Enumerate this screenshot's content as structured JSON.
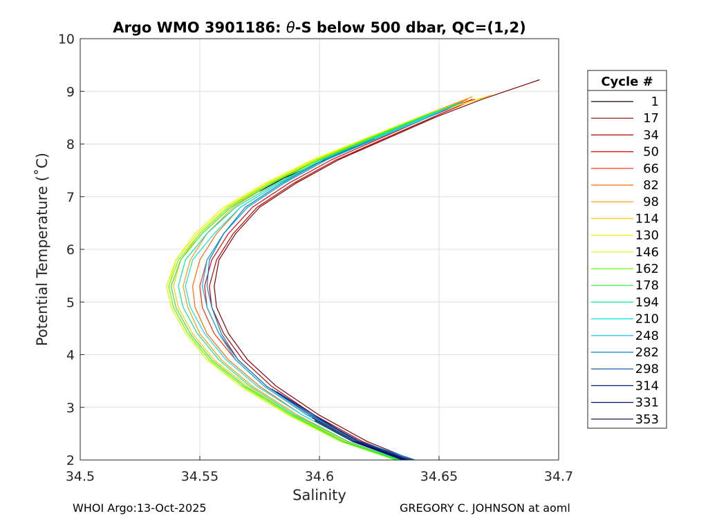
{
  "chart_data": {
    "type": "line",
    "title_prefix": "Argo WMO 3901186: ",
    "title_theta": "θ",
    "title_suffix": "-S below 500 dbar,  QC=(1,2)",
    "xlabel": "Salinity",
    "ylabel": "Potential Temperature (˚C)",
    "xlim": [
      34.5,
      34.7
    ],
    "ylim": [
      2,
      10
    ],
    "xticks": [
      "34.5",
      "34.55",
      "34.6",
      "34.65",
      "34.7"
    ],
    "yticks": [
      "2",
      "3",
      "4",
      "5",
      "6",
      "7",
      "8",
      "9",
      "10"
    ],
    "grid": true,
    "legend_title": "Cycle #",
    "legend_position": "right, outside plot",
    "series": [
      {
        "name": "1",
        "color": "#1a0000",
        "x": [
          34.575,
          34.585,
          34.6,
          34.612,
          34.62
        ],
        "y": [
          7.1,
          7.35,
          7.65,
          7.9,
          8.08
        ]
      },
      {
        "name": "17",
        "color": "#800000",
        "x": [
          34.639,
          34.62,
          34.6,
          34.582,
          34.57,
          34.562,
          34.557,
          34.556,
          34.558,
          34.565,
          34.575,
          34.59,
          34.608,
          34.628,
          34.648,
          34.668,
          34.692
        ],
        "y": [
          2.0,
          2.35,
          2.85,
          3.4,
          3.9,
          4.4,
          4.9,
          5.3,
          5.8,
          6.3,
          6.8,
          7.25,
          7.7,
          8.1,
          8.5,
          8.85,
          9.22
        ]
      },
      {
        "name": "34",
        "color": "#b30000",
        "x": [
          34.638,
          34.618,
          34.598,
          34.58,
          34.568,
          34.56,
          34.555,
          34.554,
          34.557,
          34.564,
          34.574,
          34.589,
          34.607,
          34.627,
          34.647,
          34.665
        ],
        "y": [
          2.0,
          2.35,
          2.85,
          3.4,
          3.9,
          4.4,
          4.9,
          5.3,
          5.8,
          6.3,
          6.8,
          7.25,
          7.7,
          8.1,
          8.5,
          8.85
        ]
      },
      {
        "name": "50",
        "color": "#e60000",
        "x": [
          34.637,
          34.616,
          34.596,
          34.578,
          34.566,
          34.558,
          34.553,
          34.552,
          34.555,
          34.562,
          34.572,
          34.587,
          34.605,
          34.625,
          34.645,
          34.664
        ],
        "y": [
          2.0,
          2.35,
          2.85,
          3.4,
          3.9,
          4.4,
          4.9,
          5.3,
          5.8,
          6.3,
          6.8,
          7.25,
          7.7,
          8.1,
          8.5,
          8.85
        ]
      },
      {
        "name": "66",
        "color": "#ff2a00",
        "x": [
          34.636,
          34.615,
          34.595,
          34.577,
          34.565,
          34.556,
          34.551,
          34.55,
          34.553,
          34.56,
          34.57,
          34.585,
          34.603,
          34.623,
          34.643,
          34.662
        ],
        "y": [
          2.0,
          2.35,
          2.85,
          3.4,
          3.9,
          4.4,
          4.9,
          5.3,
          5.8,
          6.3,
          6.8,
          7.25,
          7.7,
          8.1,
          8.5,
          8.85
        ]
      },
      {
        "name": "82",
        "color": "#ff6600",
        "x": [
          34.635,
          34.614,
          34.593,
          34.575,
          34.562,
          34.553,
          34.548,
          34.547,
          34.55,
          34.557,
          34.567,
          34.583,
          34.601,
          34.621,
          34.642,
          34.662
        ],
        "y": [
          2.0,
          2.35,
          2.85,
          3.4,
          3.9,
          4.4,
          4.9,
          5.3,
          5.8,
          6.3,
          6.8,
          7.25,
          7.7,
          8.1,
          8.5,
          8.85
        ]
      },
      {
        "name": "98",
        "color": "#ff9900",
        "x": [
          34.634,
          34.612,
          34.591,
          34.572,
          34.559,
          34.55,
          34.545,
          34.543,
          34.546,
          34.553,
          34.564,
          34.58,
          34.599,
          34.62,
          34.641,
          34.664
        ],
        "y": [
          2.0,
          2.35,
          2.85,
          3.4,
          3.9,
          4.4,
          4.9,
          5.3,
          5.8,
          6.3,
          6.8,
          7.25,
          7.7,
          8.1,
          8.5,
          8.9
        ]
      },
      {
        "name": "114",
        "color": "#ffcc00",
        "x": [
          34.633,
          34.611,
          34.589,
          34.57,
          34.556,
          34.547,
          34.541,
          34.539,
          34.542,
          34.55,
          34.562,
          34.578,
          34.598,
          34.62,
          34.642,
          34.672
        ],
        "y": [
          2.0,
          2.35,
          2.85,
          3.4,
          3.9,
          4.4,
          4.9,
          5.3,
          5.8,
          6.3,
          6.8,
          7.25,
          7.7,
          8.1,
          8.5,
          8.93
        ]
      },
      {
        "name": "130",
        "color": "#ffee00",
        "x": [
          34.632,
          34.61,
          34.588,
          34.568,
          34.554,
          34.545,
          34.539,
          34.537,
          34.54,
          34.548,
          34.56,
          34.577,
          34.597,
          34.619,
          34.641,
          34.668
        ],
        "y": [
          2.0,
          2.35,
          2.85,
          3.4,
          3.9,
          4.4,
          4.9,
          5.3,
          5.8,
          6.3,
          6.8,
          7.25,
          7.7,
          8.1,
          8.5,
          8.88
        ]
      },
      {
        "name": "146",
        "color": "#d4ff00",
        "x": [
          34.632,
          34.609,
          34.587,
          34.567,
          34.553,
          34.544,
          34.538,
          34.536,
          34.54,
          34.549,
          34.561,
          34.578,
          34.598,
          34.619,
          34.641,
          34.66
        ],
        "y": [
          2.0,
          2.35,
          2.85,
          3.4,
          3.9,
          4.4,
          4.9,
          5.3,
          5.8,
          6.3,
          6.8,
          7.25,
          7.7,
          8.1,
          8.5,
          8.8
        ]
      },
      {
        "name": "162",
        "color": "#66ff00",
        "x": [
          34.632,
          34.609,
          34.588,
          34.568,
          34.554,
          34.545,
          34.539,
          34.537,
          34.541,
          34.55,
          34.562,
          34.579,
          34.599,
          34.62,
          34.642,
          34.66
        ],
        "y": [
          2.0,
          2.35,
          2.85,
          3.4,
          3.9,
          4.4,
          4.9,
          5.3,
          5.8,
          6.3,
          6.8,
          7.25,
          7.7,
          8.1,
          8.5,
          8.8
        ]
      },
      {
        "name": "178",
        "color": "#33e633",
        "x": [
          34.633,
          34.61,
          34.589,
          34.569,
          34.555,
          34.546,
          34.54,
          34.538,
          34.542,
          34.551,
          34.563,
          34.58,
          34.6,
          34.621,
          34.642,
          34.66
        ],
        "y": [
          2.0,
          2.35,
          2.85,
          3.4,
          3.9,
          4.4,
          4.9,
          5.3,
          5.8,
          6.3,
          6.8,
          7.25,
          7.7,
          8.1,
          8.5,
          8.8
        ]
      },
      {
        "name": "194",
        "color": "#00e6a0",
        "x": [
          34.634,
          34.612,
          34.59,
          34.571,
          34.558,
          34.549,
          34.543,
          34.541,
          34.544,
          34.553,
          34.565,
          34.582,
          34.601,
          34.622,
          34.643,
          34.66
        ],
        "y": [
          2.0,
          2.35,
          2.85,
          3.4,
          3.9,
          4.4,
          4.9,
          5.3,
          5.8,
          6.3,
          6.8,
          7.25,
          7.7,
          8.1,
          8.5,
          8.8
        ]
      },
      {
        "name": "210",
        "color": "#00e6e6",
        "x": [
          34.636,
          34.614,
          34.593,
          34.574,
          34.561,
          34.552,
          34.546,
          34.544,
          34.547,
          34.556,
          34.567,
          34.583,
          34.602,
          34.623,
          34.644,
          34.66
        ],
        "y": [
          2.0,
          2.35,
          2.85,
          3.4,
          3.9,
          4.4,
          4.9,
          5.3,
          5.8,
          6.3,
          6.8,
          7.25,
          7.7,
          8.1,
          8.5,
          8.8
        ]
      },
      {
        "name": "248",
        "color": "#00b3e6",
        "x": [
          34.638,
          34.616,
          34.595,
          34.577,
          34.565,
          34.558,
          34.553,
          34.551,
          34.553,
          34.56,
          34.57,
          34.585,
          34.603,
          34.624,
          34.645,
          34.66
        ],
        "y": [
          2.0,
          2.35,
          2.85,
          3.4,
          3.9,
          4.4,
          4.9,
          5.3,
          5.8,
          6.3,
          6.8,
          7.25,
          7.7,
          8.1,
          8.5,
          8.8
        ]
      },
      {
        "name": "282",
        "color": "#0080cc",
        "x": [
          34.64,
          34.617,
          34.596,
          34.578,
          34.566,
          34.559,
          34.555,
          34.553,
          34.554,
          34.56,
          34.569,
          34.584,
          34.602,
          34.623
        ],
        "y": [
          2.0,
          2.35,
          2.85,
          3.4,
          3.9,
          4.4,
          4.9,
          5.3,
          5.8,
          6.3,
          6.8,
          7.25,
          7.7,
          8.1
        ]
      },
      {
        "name": "298",
        "color": "#0040a0",
        "x": [
          34.638,
          34.617,
          34.597,
          34.58
        ],
        "y": [
          2.0,
          2.35,
          2.85,
          3.35
        ]
      },
      {
        "name": "314",
        "color": "#002080",
        "x": [
          34.637,
          34.616,
          34.598,
          34.582
        ],
        "y": [
          2.0,
          2.35,
          2.85,
          3.3
        ]
      },
      {
        "name": "331",
        "color": "#001066",
        "x": [
          34.636,
          34.615,
          34.597
        ],
        "y": [
          2.0,
          2.35,
          2.8
        ]
      },
      {
        "name": "353",
        "color": "#00004d",
        "x": [
          34.635,
          34.614,
          34.598
        ],
        "y": [
          2.0,
          2.35,
          2.75
        ]
      }
    ]
  },
  "footer": {
    "left": "WHOI Argo:13-Oct-2025",
    "right": "GREGORY C. JOHNSON at aoml"
  }
}
